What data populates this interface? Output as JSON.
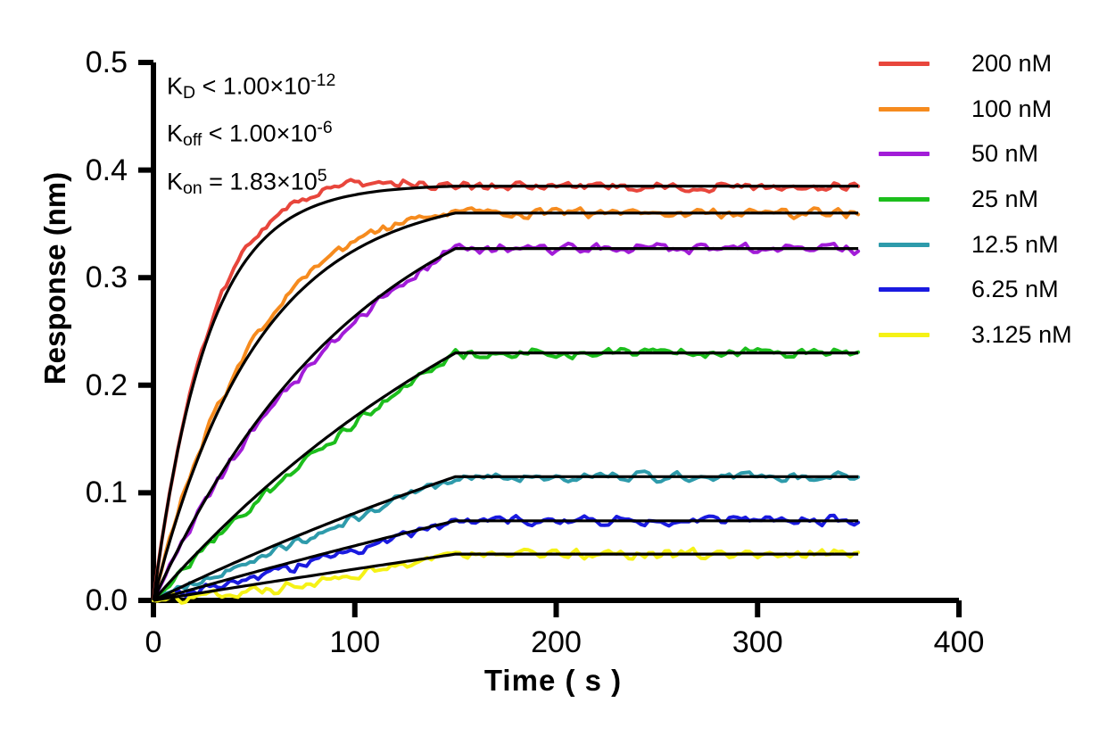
{
  "figure": {
    "background": "#ffffff",
    "description": "Binding kinetics sensorgram with fitted curves"
  },
  "annotation": {
    "lines": [
      {
        "k": "K",
        "sub": "D",
        "body": " < 1.00×10",
        "exp": "-12"
      },
      {
        "k": "K",
        "sub": "off",
        "body": " < 1.00×10",
        "exp": "-6"
      },
      {
        "k": "K",
        "sub": "on",
        "body": " = 1.83×10",
        "exp": "5"
      }
    ]
  },
  "chart_data": {
    "type": "line",
    "title": "",
    "xlabel": "Time ( s )",
    "ylabel": "Response (nm)",
    "xlim": [
      0,
      400
    ],
    "ylim": [
      0,
      0.5
    ],
    "grid": false,
    "legend_position": "right-outside",
    "axis_color": "#000000",
    "fit_line_color": "#000000",
    "association_end_s": 150,
    "trace_end_s": 350,
    "noise_amplitude_nm": 0.0055,
    "x_ticks": [
      {
        "label": "0",
        "value": 0
      },
      {
        "label": "100",
        "value": 100
      },
      {
        "label": "200",
        "value": 200
      },
      {
        "label": "300",
        "value": 300
      },
      {
        "label": "400",
        "value": 400
      }
    ],
    "y_ticks": [
      {
        "label": "0.0",
        "value": 0.0
      },
      {
        "label": "0.1",
        "value": 0.1
      },
      {
        "label": "0.2",
        "value": 0.2
      },
      {
        "label": "0.3",
        "value": 0.3
      },
      {
        "label": "0.4",
        "value": 0.4
      },
      {
        "label": "0.5",
        "value": 0.5
      }
    ],
    "series": [
      {
        "name": "200 nM",
        "concentration_nM": 200,
        "color": "#E8463C",
        "plateau_nm": 0.385,
        "tau_s": 27,
        "bias_nm": 0.011
      },
      {
        "name": "100 nM",
        "concentration_nM": 100,
        "color": "#F68B1E",
        "plateau_nm": 0.36,
        "tau_s": 52,
        "bias_nm": 0.008
      },
      {
        "name": "50 nM",
        "concentration_nM": 50,
        "color": "#A21CD8",
        "plateau_nm": 0.327,
        "tau_s": 105,
        "bias_nm": -0.006
      },
      {
        "name": "25 nM",
        "concentration_nM": 25,
        "color": "#1CBE1C",
        "plateau_nm": 0.23,
        "tau_s": 210,
        "bias_nm": -0.007
      },
      {
        "name": "12.5 nM",
        "concentration_nM": 12.5,
        "color": "#2E9BAB",
        "plateau_nm": 0.115,
        "tau_s": 420,
        "bias_nm": -0.005
      },
      {
        "name": "6.25 nM",
        "concentration_nM": 6.25,
        "color": "#1A1AE0",
        "plateau_nm": 0.074,
        "tau_s": 840,
        "bias_nm": -0.005
      },
      {
        "name": "3.125 nM",
        "concentration_nM": 3.125,
        "color": "#F5F216",
        "plateau_nm": 0.043,
        "tau_s": 1700,
        "bias_nm": -0.007
      }
    ]
  }
}
